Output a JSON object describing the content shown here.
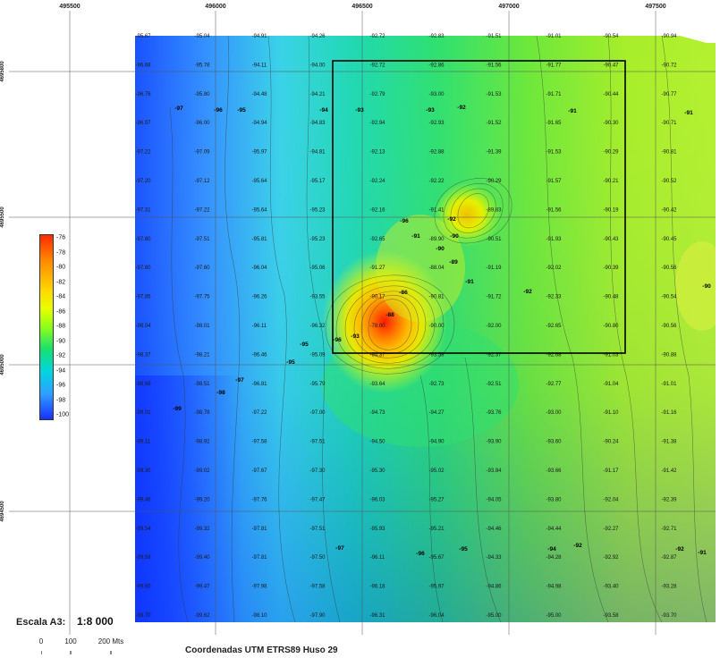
{
  "map": {
    "x_ticks": [
      "495500",
      "496000",
      "496500",
      "497000",
      "497500"
    ],
    "y_ticks": [
      "4695800",
      "4695500",
      "4695000",
      "4694500"
    ]
  },
  "legend": {
    "values": [
      "-76",
      "-78",
      "-80",
      "-82",
      "-84",
      "-86",
      "-88",
      "-90",
      "-92",
      "-94",
      "-96",
      "-98",
      "-100"
    ]
  },
  "scale": {
    "label": "Escala A3:",
    "value": "1:8 000",
    "bar_labels": [
      "0",
      "100",
      "200 Mts"
    ]
  },
  "caption": "Coordenadas UTM ETRS89 Huso 29",
  "contour_labels": [
    "-97",
    "-96",
    "-95",
    "-94",
    "-93",
    "-93",
    "-92",
    "-91",
    "-96",
    "-92",
    "-91",
    "-90",
    "-90",
    "-89",
    "-86",
    "-88",
    "-91",
    "-92",
    "-95",
    "-93",
    "-96",
    "-95",
    "-97",
    "-98",
    "-99",
    "-91",
    "-90",
    "-97",
    "-96",
    "-95",
    "-94",
    "-92",
    "-92",
    "-91"
  ],
  "depth_grid": [
    [
      "-95.67",
      "-95.04",
      "-94.91",
      "-94.26",
      "-92.72",
      "-92.83",
      "-91.51",
      "-91.01",
      "-90.54",
      "-90.94"
    ],
    [
      "-96.68",
      "-95.78",
      "-94.11",
      "-94.00",
      "-92.72",
      "-92.86",
      "-91.56",
      "-91.77",
      "-90.47",
      "-90.72"
    ],
    [
      "-96.76",
      "-95.80",
      "-94.48",
      "-94.21",
      "-92.79",
      "-93.00",
      "-91.53",
      "-91.71",
      "-90.44",
      "-90.77"
    ],
    [
      "-96.97",
      "-96.00",
      "-94.94",
      "-94.83",
      "-92.94",
      "-92.93",
      "-91.52",
      "-91.65",
      "-90.30",
      "-90.71"
    ],
    [
      "-97.22",
      "-97.09",
      "-95.97",
      "-94.81",
      "-92.13",
      "-92.88",
      "-91.39",
      "-91.53",
      "-90.29",
      "-90.81"
    ],
    [
      "-97.20",
      "-97.12",
      "-95.64",
      "-95.17",
      "-92.24",
      "-92.22",
      "-90.29",
      "-91.57",
      "-90.21",
      "-90.52"
    ],
    [
      "-97.31",
      "-97.22",
      "-95.64",
      "-95.23",
      "-92.16",
      "-91.41",
      "-89.83",
      "-91.56",
      "-90.19",
      "-90.42"
    ],
    [
      "-97.80",
      "-97.51",
      "-95.81",
      "-95.23",
      "-92.65",
      "-89.90",
      "-90.51",
      "-91.93",
      "-90.43",
      "-90.45"
    ],
    [
      "-97.80",
      "-97.60",
      "-96.04",
      "-95.06",
      "-91.27",
      "-88.04",
      "-91.19",
      "-92.02",
      "-90.39",
      "-90.56"
    ],
    [
      "-97.85",
      "-97.75",
      "-96.26",
      "-93.55",
      "-90.17",
      "-90.81",
      "-91.72",
      "-92.33",
      "-90.48",
      "-90.54"
    ],
    [
      "-98.04",
      "-98.01",
      "-96.11",
      "-96.32",
      "-78.00",
      "-90.00",
      "-92.00",
      "-92.65",
      "-90.80",
      "-90.56"
    ],
    [
      "-98.37",
      "-98.21",
      "-96.46",
      "-95.09",
      "-94.37",
      "-93.59",
      "-92.37",
      "-92.68",
      "-91.03",
      "-90.88"
    ],
    [
      "-98.69",
      "-98.51",
      "-96.81",
      "-95.79",
      "-93.64",
      "-92.73",
      "-92.51",
      "-92.77",
      "-91.04",
      "-91.01"
    ],
    [
      "-99.01",
      "-98.78",
      "-97.22",
      "-97.00",
      "-94.73",
      "-94.27",
      "-93.76",
      "-93.00",
      "-91.10",
      "-91.16"
    ],
    [
      "-99.11",
      "-98.92",
      "-97.58",
      "-97.51",
      "-94.50",
      "-94.90",
      "-93.90",
      "-93.60",
      "-90.24",
      "-91.38"
    ],
    [
      "-99.30",
      "-99.02",
      "-97.67",
      "-97.30",
      "-95.30",
      "-95.02",
      "-93.84",
      "-93.66",
      "-91.17",
      "-91.42"
    ],
    [
      "-99.46",
      "-99.20",
      "-97.76",
      "-97.47",
      "-96.03",
      "-95.27",
      "-94.05",
      "-93.80",
      "-92.04",
      "-92.39"
    ],
    [
      "-99.54",
      "-99.32",
      "-97.81",
      "-97.51",
      "-95.93",
      "-95.21",
      "-94.46",
      "-94.44",
      "-92.27",
      "-92.71"
    ],
    [
      "-99.59",
      "-99.40",
      "-97.81",
      "-97.50",
      "-96.11",
      "-95.67",
      "-94.33",
      "-94.28",
      "-92.92",
      "-92.87"
    ],
    [
      "-99.60",
      "-99.47",
      "-97.98",
      "-97.58",
      "-96.18",
      "-95.97",
      "-94.86",
      "-94.98",
      "-93.40",
      "-93.28"
    ],
    [
      "-99.70",
      "-99.62",
      "-98.10",
      "-97.90",
      "-96.31",
      "-96.04",
      "-95.00",
      "-95.00",
      "-93.58",
      "-93.70"
    ]
  ],
  "colors": {
    "deep": "#1830ff",
    "shallow": "#ff2a00",
    "frame": "#000000",
    "grid": "#555555"
  }
}
